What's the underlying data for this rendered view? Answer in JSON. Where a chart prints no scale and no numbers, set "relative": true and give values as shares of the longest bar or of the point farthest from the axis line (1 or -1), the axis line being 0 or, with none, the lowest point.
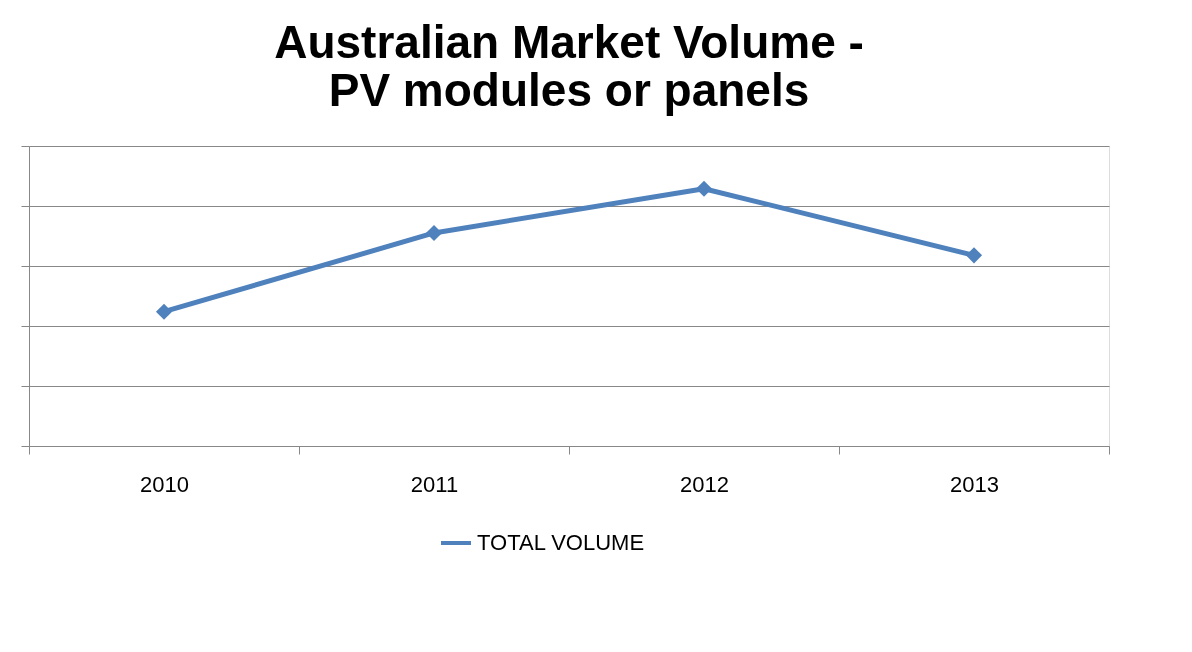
{
  "chart_data": {
    "type": "line",
    "title": "Australian Market Volume - PV modules or panels",
    "categories": [
      "2010",
      "2011",
      "2012",
      "2013"
    ],
    "series": [
      {
        "name": "TOTAL VOLUME",
        "color": "#4f81bd",
        "values": [
          0.522,
          0.828,
          1,
          0.741
        ]
      }
    ],
    "relative": true,
    "grid": "y",
    "legend": "bottom",
    "marker": "diamond",
    "line_style": "solid"
  }
}
